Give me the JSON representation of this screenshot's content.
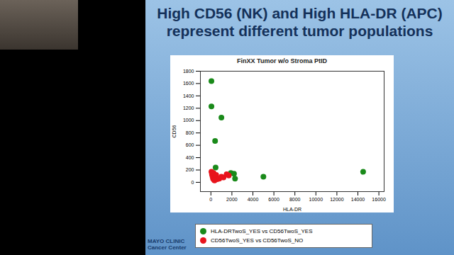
{
  "slide": {
    "heading": "High CD56 (NK) and High HLA-DR (APC) represent different tumor populations",
    "logo": [
      "MAYO CLINIC",
      "Cancer Center"
    ]
  },
  "chart_data": {
    "type": "scatter",
    "title": "FinXX Tumor w/o Stroma PtID",
    "x_label": "HLA-DR",
    "y_label": "CD56",
    "xlim": [
      -1000,
      16500
    ],
    "ylim": [
      -150,
      1800
    ],
    "xticks": [
      0,
      2000,
      4000,
      6000,
      8000,
      10000,
      12000,
      14000,
      16000
    ],
    "yticks": [
      0,
      200,
      400,
      600,
      800,
      1000,
      1200,
      1400,
      1600,
      1800
    ],
    "grid": false,
    "legend": "bottom",
    "series": [
      {
        "name": "HLA-DRTwoS_YES vs CD56TwoS_YES",
        "color": "#1a8a1a",
        "x": [
          50,
          50,
          1000,
          400,
          450,
          1900,
          2200,
          2300,
          5000,
          14500
        ],
        "values": [
          1640,
          1230,
          1050,
          670,
          240,
          150,
          140,
          60,
          90,
          170
        ]
      },
      {
        "name": "CD56TwoS_YES vs CD56TwoS_NO",
        "color": "#e8141c",
        "x": [
          50,
          100,
          150,
          200,
          300,
          400,
          500,
          600,
          800,
          1000,
          1200,
          1500,
          1700,
          250,
          350
        ],
        "values": [
          170,
          130,
          100,
          60,
          40,
          80,
          120,
          50,
          60,
          90,
          80,
          130,
          110,
          150,
          30
        ]
      }
    ]
  }
}
